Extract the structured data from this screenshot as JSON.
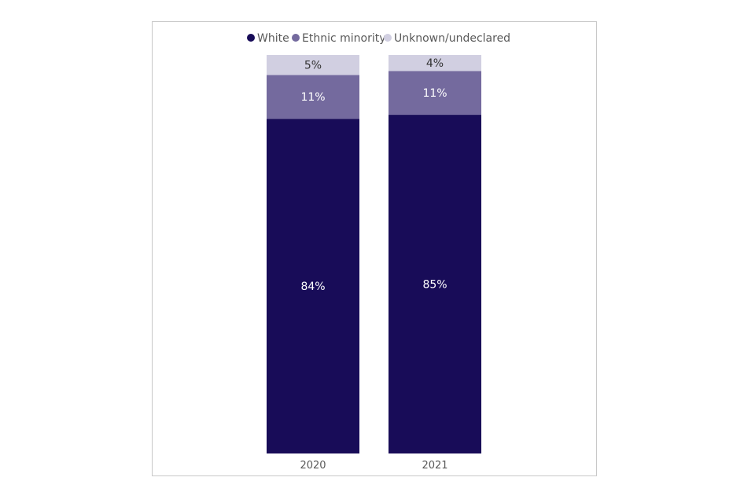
{
  "chart_data": {
    "type": "bar",
    "stacked": true,
    "percent_stacked": true,
    "categories": [
      "2020",
      "2021"
    ],
    "series": [
      {
        "name": "White",
        "values": [
          84,
          85
        ],
        "labels": [
          "84%",
          "85%"
        ],
        "color": "#180c58",
        "label_color": "#ffffff"
      },
      {
        "name": "Ethnic minority",
        "values": [
          11,
          11
        ],
        "labels": [
          "11%",
          "11%"
        ],
        "color": "#746a9e",
        "label_color": "#ffffff"
      },
      {
        "name": "Unknown/undeclared",
        "values": [
          5,
          4
        ],
        "labels": [
          "5%",
          "4%"
        ],
        "color": "#d1cfe1",
        "label_color": "#333333"
      }
    ],
    "ylim": [
      0,
      100
    ],
    "legend_position": "top",
    "grid": false
  }
}
